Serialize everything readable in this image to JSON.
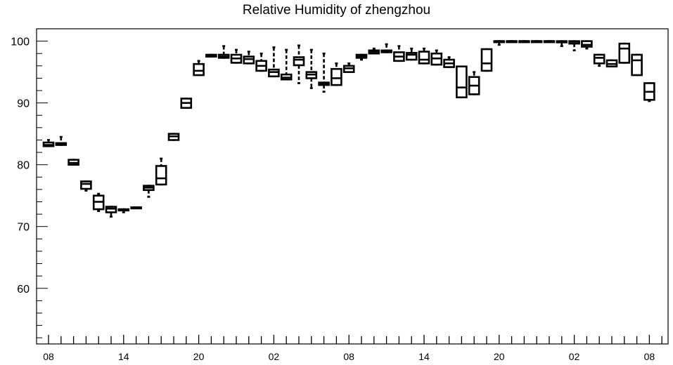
{
  "chart_data": {
    "type": "box",
    "title": "Relative Humidity of zhengzhou",
    "xlabel": "",
    "ylabel": "",
    "ylim": [
      51,
      102
    ],
    "xlim": [
      0,
      49
    ],
    "y_ticks": [
      60,
      70,
      80,
      90,
      100
    ],
    "x_tick_labels": [
      {
        "pos": 0,
        "label": "08"
      },
      {
        "pos": 6,
        "label": "14"
      },
      {
        "pos": 12,
        "label": "20"
      },
      {
        "pos": 18,
        "label": "02"
      },
      {
        "pos": 24,
        "label": "08"
      },
      {
        "pos": 30,
        "label": "14"
      },
      {
        "pos": 36,
        "label": "20"
      },
      {
        "pos": 42,
        "label": "02"
      },
      {
        "pos": 48,
        "label": "08"
      }
    ],
    "grid": false,
    "boxes": [
      {
        "x": 0,
        "min": 83.0,
        "q1": 83.0,
        "median": 83.2,
        "q3": 83.6,
        "max": 84.0
      },
      {
        "x": 1,
        "min": 83.2,
        "q1": 83.2,
        "median": 83.3,
        "q3": 83.5,
        "max": 84.5
      },
      {
        "x": 2,
        "min": 80.0,
        "q1": 80.0,
        "median": 80.3,
        "q3": 80.8,
        "max": 80.8
      },
      {
        "x": 3,
        "min": 75.8,
        "q1": 76.1,
        "median": 76.9,
        "q3": 77.3,
        "max": 77.3
      },
      {
        "x": 4,
        "min": 72.5,
        "q1": 72.8,
        "median": 74.0,
        "q3": 75.0,
        "max": 75.3
      },
      {
        "x": 5,
        "min": 71.6,
        "q1": 72.3,
        "median": 72.9,
        "q3": 73.2,
        "max": 73.2
      },
      {
        "x": 6,
        "min": 72.3,
        "q1": 72.6,
        "median": 72.7,
        "q3": 72.8,
        "max": 72.8
      },
      {
        "x": 7,
        "min": 73.0,
        "q1": 73.0,
        "median": 73.1,
        "q3": 73.1,
        "max": 73.1
      },
      {
        "x": 8,
        "min": 74.8,
        "q1": 75.9,
        "median": 76.3,
        "q3": 76.6,
        "max": 76.6
      },
      {
        "x": 9,
        "min": 76.8,
        "q1": 76.8,
        "median": 77.8,
        "q3": 79.8,
        "max": 81.0
      },
      {
        "x": 10,
        "min": 84.0,
        "q1": 84.0,
        "median": 84.6,
        "q3": 85.0,
        "max": 85.0
      },
      {
        "x": 11,
        "min": 89.2,
        "q1": 89.2,
        "median": 90.0,
        "q3": 90.7,
        "max": 90.7
      },
      {
        "x": 12,
        "min": 94.5,
        "q1": 94.5,
        "median": 95.2,
        "q3": 96.3,
        "max": 96.8
      },
      {
        "x": 13,
        "min": 97.5,
        "q1": 97.5,
        "median": 97.7,
        "q3": 97.8,
        "max": 97.8
      },
      {
        "x": 14,
        "min": 97.3,
        "q1": 97.3,
        "median": 97.5,
        "q3": 97.8,
        "max": 99.2
      },
      {
        "x": 15,
        "min": 96.5,
        "q1": 96.5,
        "median": 97.2,
        "q3": 97.8,
        "max": 98.6
      },
      {
        "x": 16,
        "min": 96.4,
        "q1": 96.4,
        "median": 97.1,
        "q3": 97.5,
        "max": 98.3
      },
      {
        "x": 17,
        "min": 95.2,
        "q1": 95.2,
        "median": 96.0,
        "q3": 96.8,
        "max": 98.0
      },
      {
        "x": 18,
        "min": 94.3,
        "q1": 94.3,
        "median": 95.0,
        "q3": 95.4,
        "max": 99.0
      },
      {
        "x": 19,
        "min": 93.8,
        "q1": 93.8,
        "median": 94.1,
        "q3": 94.6,
        "max": 98.6
      },
      {
        "x": 20,
        "min": 93.2,
        "q1": 96.1,
        "median": 97.0,
        "q3": 97.4,
        "max": 99.3
      },
      {
        "x": 21,
        "min": 92.4,
        "q1": 94.0,
        "median": 94.6,
        "q3": 95.0,
        "max": 98.6
      },
      {
        "x": 22,
        "min": 91.8,
        "q1": 92.9,
        "median": 93.1,
        "q3": 93.3,
        "max": 98.0
      },
      {
        "x": 23,
        "min": 92.9,
        "q1": 92.9,
        "median": 94.0,
        "q3": 95.5,
        "max": 96.4
      },
      {
        "x": 24,
        "min": 95.0,
        "q1": 95.0,
        "median": 95.6,
        "q3": 96.0,
        "max": 96.4
      },
      {
        "x": 25,
        "min": 97.0,
        "q1": 97.3,
        "median": 97.6,
        "q3": 97.8,
        "max": 97.8
      },
      {
        "x": 26,
        "min": 98.0,
        "q1": 98.0,
        "median": 98.3,
        "q3": 98.5,
        "max": 98.8
      },
      {
        "x": 27,
        "min": 98.2,
        "q1": 98.2,
        "median": 98.4,
        "q3": 98.5,
        "max": 99.5
      },
      {
        "x": 28,
        "min": 96.8,
        "q1": 96.8,
        "median": 97.5,
        "q3": 98.2,
        "max": 99.2
      },
      {
        "x": 29,
        "min": 97.0,
        "q1": 97.0,
        "median": 97.8,
        "q3": 98.1,
        "max": 98.8
      },
      {
        "x": 30,
        "min": 96.4,
        "q1": 96.4,
        "median": 97.0,
        "q3": 98.3,
        "max": 98.8
      },
      {
        "x": 31,
        "min": 96.2,
        "q1": 96.2,
        "median": 97.2,
        "q3": 98.0,
        "max": 98.5
      },
      {
        "x": 32,
        "min": 95.8,
        "q1": 95.8,
        "median": 96.4,
        "q3": 97.0,
        "max": 97.4
      },
      {
        "x": 33,
        "min": 90.9,
        "q1": 90.9,
        "median": 92.5,
        "q3": 95.9,
        "max": 95.9
      },
      {
        "x": 34,
        "min": 91.4,
        "q1": 91.4,
        "median": 92.8,
        "q3": 94.2,
        "max": 95.0
      },
      {
        "x": 35,
        "min": 95.2,
        "q1": 95.2,
        "median": 96.4,
        "q3": 98.7,
        "max": 98.7
      },
      {
        "x": 36,
        "min": 99.4,
        "q1": 99.9,
        "median": 100.0,
        "q3": 100.0,
        "max": 100.0
      },
      {
        "x": 37,
        "min": 100.0,
        "q1": 100.0,
        "median": 100.0,
        "q3": 100.0,
        "max": 100.0
      },
      {
        "x": 38,
        "min": 100.0,
        "q1": 100.0,
        "median": 100.0,
        "q3": 100.0,
        "max": 100.0
      },
      {
        "x": 39,
        "min": 100.0,
        "q1": 100.0,
        "median": 100.0,
        "q3": 100.0,
        "max": 100.0
      },
      {
        "x": 40,
        "min": 100.0,
        "q1": 100.0,
        "median": 100.0,
        "q3": 100.0,
        "max": 100.0
      },
      {
        "x": 41,
        "min": 99.2,
        "q1": 99.8,
        "median": 99.9,
        "q3": 100.0,
        "max": 100.0
      },
      {
        "x": 42,
        "min": 98.5,
        "q1": 99.6,
        "median": 99.9,
        "q3": 100.0,
        "max": 100.0
      },
      {
        "x": 43,
        "min": 98.8,
        "q1": 99.1,
        "median": 99.4,
        "q3": 100.0,
        "max": 100.0
      },
      {
        "x": 44,
        "min": 96.0,
        "q1": 96.4,
        "median": 97.3,
        "q3": 97.8,
        "max": 97.8
      },
      {
        "x": 45,
        "min": 95.9,
        "q1": 95.9,
        "median": 96.3,
        "q3": 96.9,
        "max": 96.9
      },
      {
        "x": 46,
        "min": 96.5,
        "q1": 96.5,
        "median": 98.8,
        "q3": 99.6,
        "max": 99.6
      },
      {
        "x": 47,
        "min": 94.5,
        "q1": 94.5,
        "median": 96.9,
        "q3": 97.8,
        "max": 97.8
      },
      {
        "x": 48,
        "min": 90.3,
        "q1": 90.5,
        "median": 91.8,
        "q3": 93.2,
        "max": 93.2
      }
    ]
  }
}
